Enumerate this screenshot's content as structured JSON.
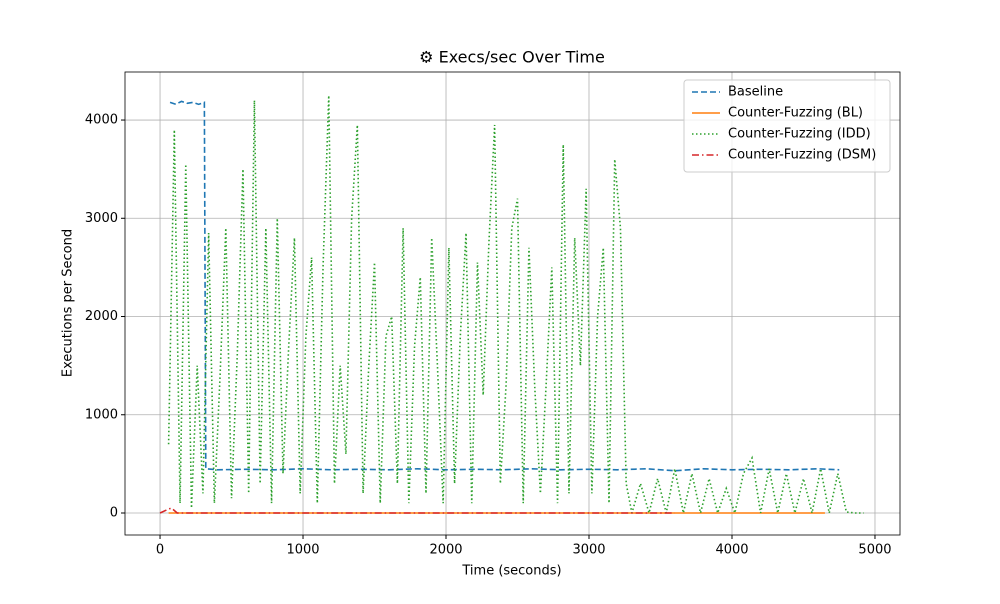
{
  "chart_data": {
    "type": "line",
    "title": "⚙ Execs/sec Over Time",
    "x_label": "Time (seconds)",
    "y_label": "Executions per Second",
    "xlim": [
      -245,
      5175
    ],
    "ylim": [
      -224,
      4489
    ],
    "xticks": [
      0,
      1000,
      2000,
      3000,
      4000,
      5000
    ],
    "yticks": [
      0,
      1000,
      2000,
      3000,
      4000
    ],
    "grid": true,
    "legend": "upper right",
    "series": [
      {
        "name": "Baseline",
        "color": "#1f77b4",
        "linestyle": "dashed",
        "x": [
          70,
          110,
          150,
          190,
          230,
          270,
          310,
          320,
          400,
          600,
          800,
          1000,
          1200,
          1400,
          1600,
          1800,
          2000,
          2200,
          2400,
          2600,
          2800,
          3000,
          3200,
          3400,
          3600,
          3800,
          4000,
          4200,
          4400,
          4600,
          4750
        ],
        "values": [
          4180,
          4160,
          4190,
          4170,
          4180,
          4160,
          4180,
          450,
          440,
          445,
          440,
          450,
          440,
          445,
          440,
          450,
          440,
          445,
          440,
          450,
          440,
          445,
          440,
          450,
          430,
          450,
          440,
          445,
          440,
          450,
          440
        ]
      },
      {
        "name": "Counter-Fuzzing (BL)",
        "color": "#ff7f0e",
        "linestyle": "solid",
        "x": [
          60,
          1000,
          2000,
          3000,
          4000,
          4650
        ],
        "values": [
          0,
          0,
          0,
          0,
          0,
          0
        ]
      },
      {
        "name": "Counter-Fuzzing (IDD)",
        "color": "#2ca02c",
        "linestyle": "dotted",
        "x": [
          60,
          100,
          140,
          180,
          220,
          260,
          300,
          340,
          380,
          420,
          460,
          500,
          540,
          580,
          620,
          660,
          700,
          740,
          780,
          820,
          860,
          900,
          940,
          980,
          1020,
          1060,
          1100,
          1140,
          1180,
          1220,
          1260,
          1300,
          1340,
          1380,
          1420,
          1460,
          1500,
          1540,
          1580,
          1620,
          1660,
          1700,
          1740,
          1780,
          1820,
          1860,
          1900,
          1940,
          1980,
          2020,
          2060,
          2100,
          2140,
          2180,
          2220,
          2260,
          2300,
          2340,
          2380,
          2420,
          2460,
          2500,
          2540,
          2580,
          2620,
          2660,
          2700,
          2740,
          2780,
          2820,
          2860,
          2900,
          2940,
          2980,
          3020,
          3060,
          3100,
          3140,
          3180,
          3220,
          3260,
          3300,
          3360,
          3420,
          3480,
          3540,
          3600,
          3660,
          3720,
          3780,
          3840,
          3900,
          3960,
          4020,
          4080,
          4140,
          4200,
          4260,
          4320,
          4380,
          4440,
          4500,
          4560,
          4620,
          4680,
          4740,
          4800,
          4860,
          4920
        ],
        "values": [
          700,
          3900,
          100,
          3550,
          50,
          1500,
          200,
          2850,
          100,
          1400,
          2900,
          150,
          1600,
          3500,
          200,
          4200,
          300,
          2900,
          100,
          3000,
          400,
          1700,
          2800,
          200,
          1800,
          2600,
          100,
          2500,
          4250,
          300,
          1500,
          600,
          3000,
          3950,
          200,
          1500,
          2550,
          100,
          1800,
          2000,
          300,
          2900,
          100,
          1700,
          2400,
          200,
          2800,
          1500,
          100,
          2700,
          300,
          1800,
          2850,
          100,
          2550,
          1200,
          2750,
          3950,
          300,
          1300,
          2900,
          3200,
          100,
          2700,
          1300,
          200,
          1300,
          2500,
          100,
          3750,
          200,
          2800,
          1500,
          3300,
          200,
          2000,
          2700,
          100,
          3600,
          2900,
          300,
          0,
          300,
          0,
          350,
          0,
          450,
          0,
          400,
          0,
          350,
          0,
          250,
          0,
          400,
          560,
          0,
          450,
          0,
          400,
          0,
          350,
          0,
          450,
          0,
          400,
          10,
          0,
          0
        ]
      },
      {
        "name": "Counter-Fuzzing (DSM)",
        "color": "#d62728",
        "linestyle": "dashdot",
        "x": [
          0,
          60,
          80,
          120,
          500,
          1000,
          2000,
          3000,
          3600
        ],
        "values": [
          0,
          40,
          50,
          0,
          0,
          0,
          0,
          0,
          0
        ]
      }
    ]
  }
}
